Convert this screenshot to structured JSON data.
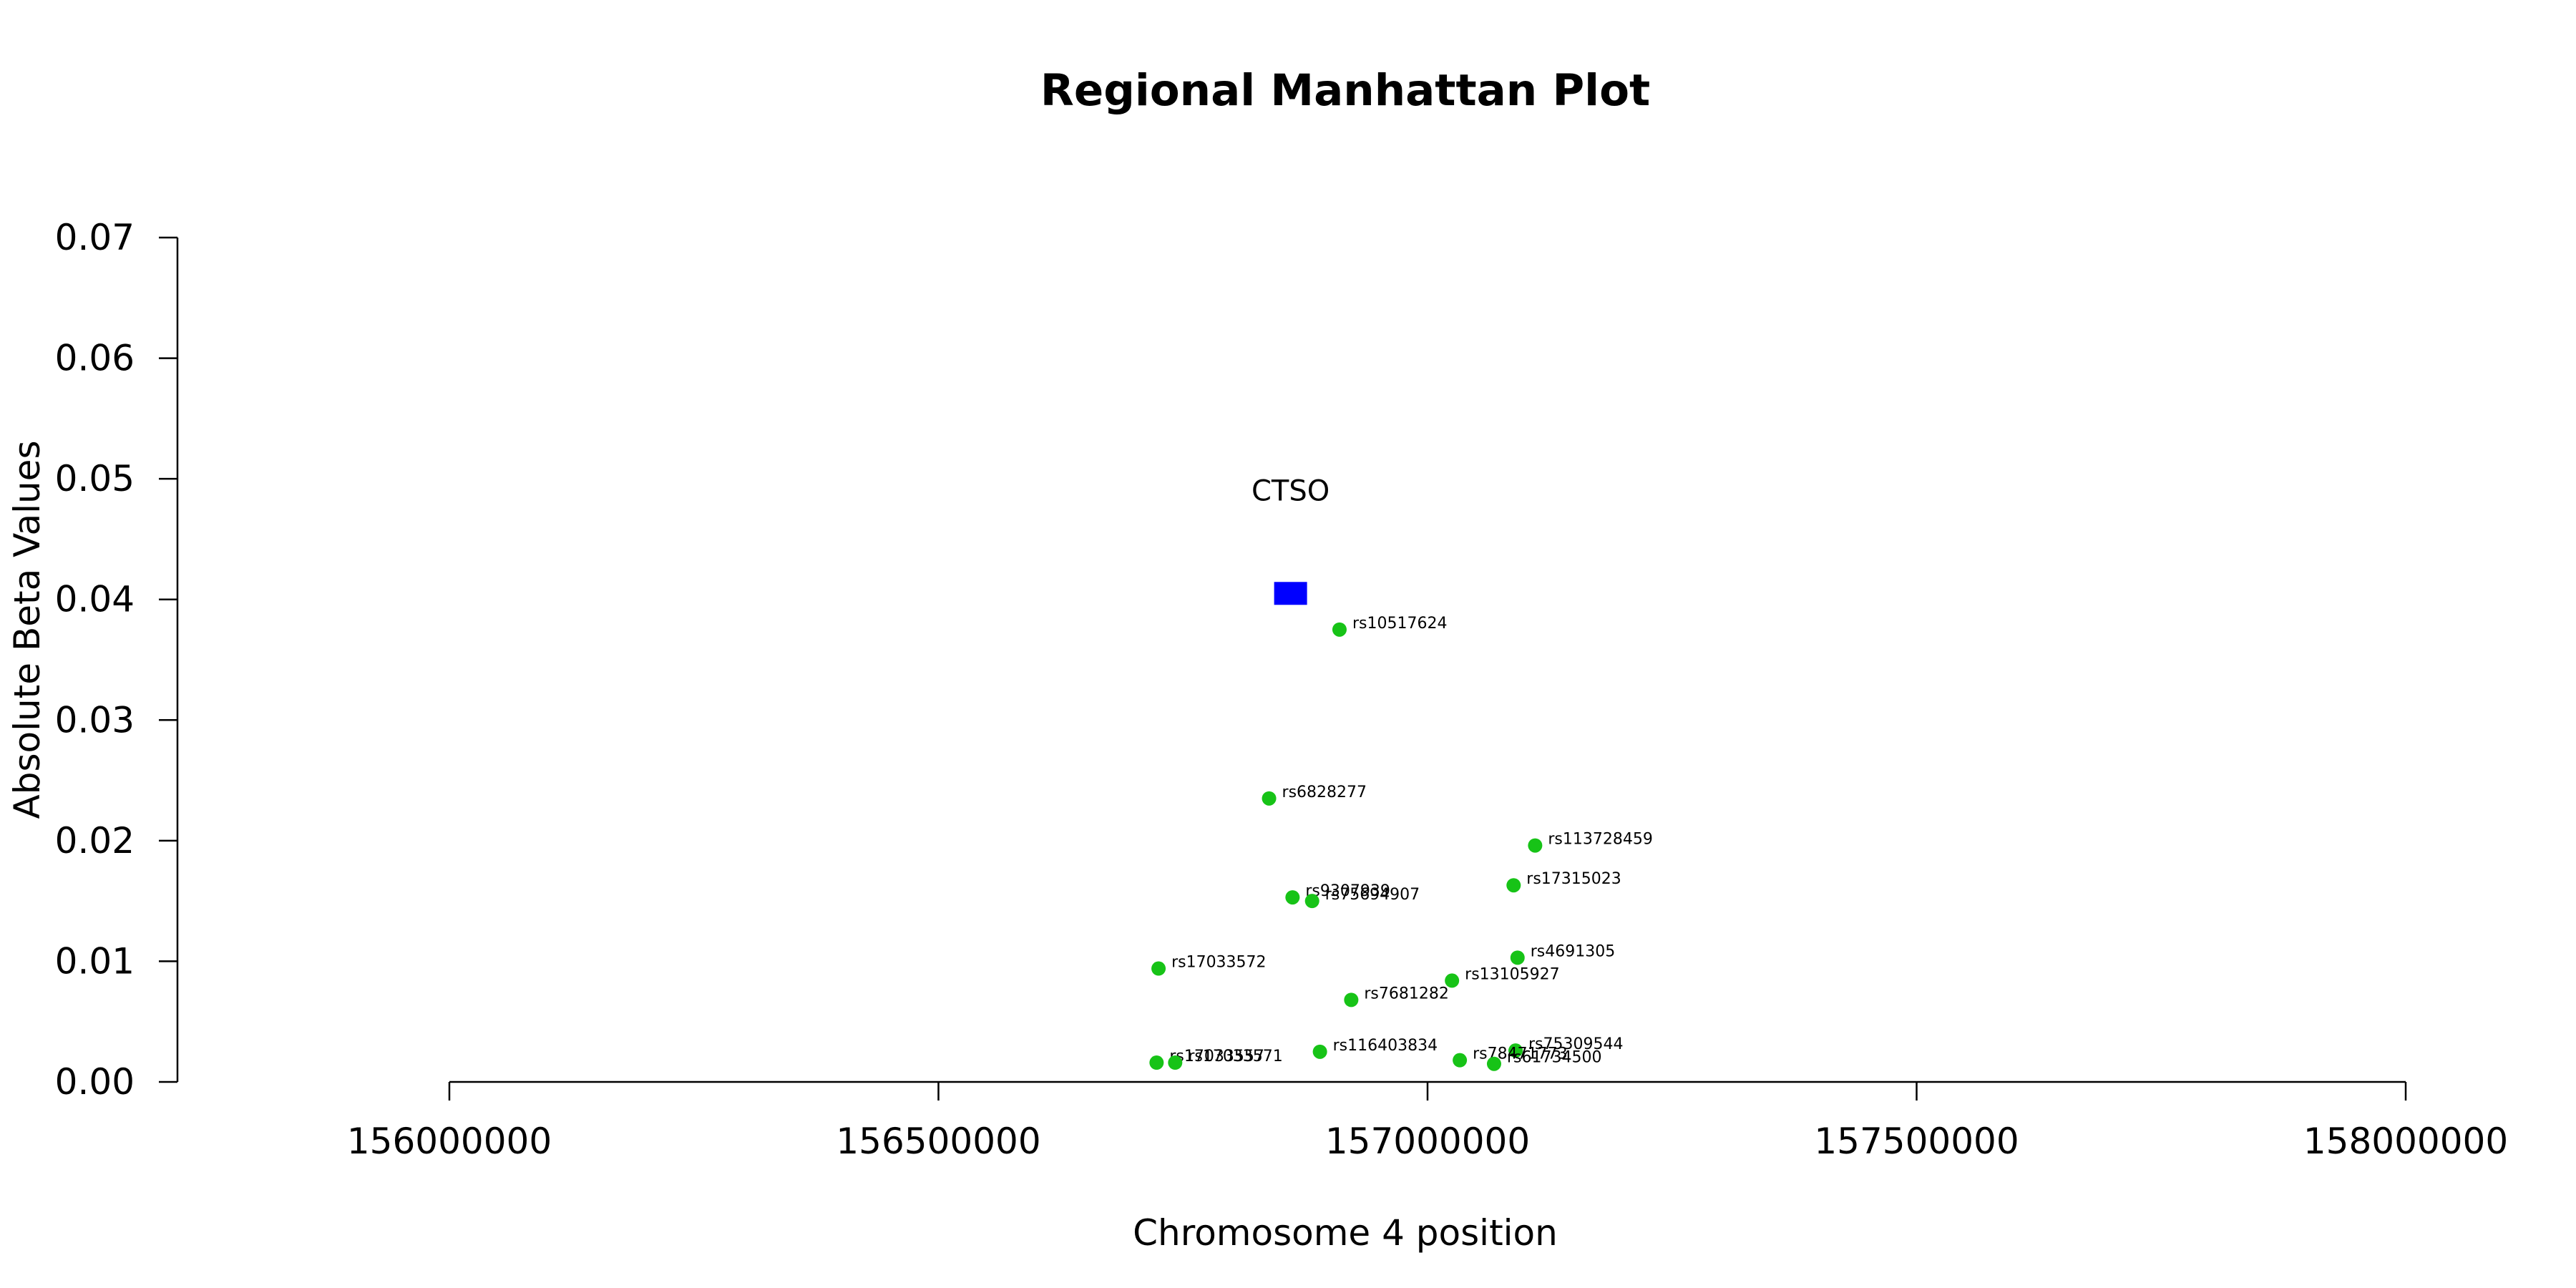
{
  "chart_data": {
    "type": "scatter",
    "title": "Regional Manhattan Plot",
    "xlabel": "Chromosome 4 position",
    "ylabel": "Absolute Beta Values",
    "xlim": [
      156000000,
      158000000
    ],
    "ylim": [
      0,
      0.07
    ],
    "x_ticks": [
      "156000000",
      "156500000",
      "157000000",
      "157500000",
      "158000000"
    ],
    "y_ticks": [
      "0.00",
      "0.01",
      "0.02",
      "0.03",
      "0.04",
      "0.05",
      "0.06",
      "0.07"
    ],
    "grid": false,
    "gene": {
      "name": "CTSO",
      "x": 156860000,
      "y": 0.0405,
      "color": "#0000ff"
    },
    "snp_color": "#17c317",
    "snps": [
      {
        "id": "rs10517624",
        "x": 156910000,
        "y": 0.0375
      },
      {
        "id": "rs6828277",
        "x": 156838000,
        "y": 0.0235
      },
      {
        "id": "rs113728459",
        "x": 157110000,
        "y": 0.0196
      },
      {
        "id": "rs17315023",
        "x": 157088000,
        "y": 0.0163
      },
      {
        "id": "rs9307939",
        "x": 156862000,
        "y": 0.0153
      },
      {
        "id": "rs75694907",
        "x": 156882000,
        "y": 0.015
      },
      {
        "id": "rs4691305",
        "x": 157092000,
        "y": 0.0103
      },
      {
        "id": "rs17033572",
        "x": 156725000,
        "y": 0.0094
      },
      {
        "id": "rs13105927",
        "x": 157025000,
        "y": 0.0084
      },
      {
        "id": "rs7681282",
        "x": 156922000,
        "y": 0.0068
      },
      {
        "id": "rs116403834",
        "x": 156890000,
        "y": 0.0025
      },
      {
        "id": "rs75309544",
        "x": 157090000,
        "y": 0.0026
      },
      {
        "id": "rs78471773",
        "x": 157033000,
        "y": 0.0018
      },
      {
        "id": "rs61734500",
        "x": 157068000,
        "y": 0.0015
      },
      {
        "id": "rs17033557",
        "x": 156723000,
        "y": 0.0016
      },
      {
        "id": "rs17033571",
        "x": 156742000,
        "y": 0.0016
      }
    ]
  }
}
